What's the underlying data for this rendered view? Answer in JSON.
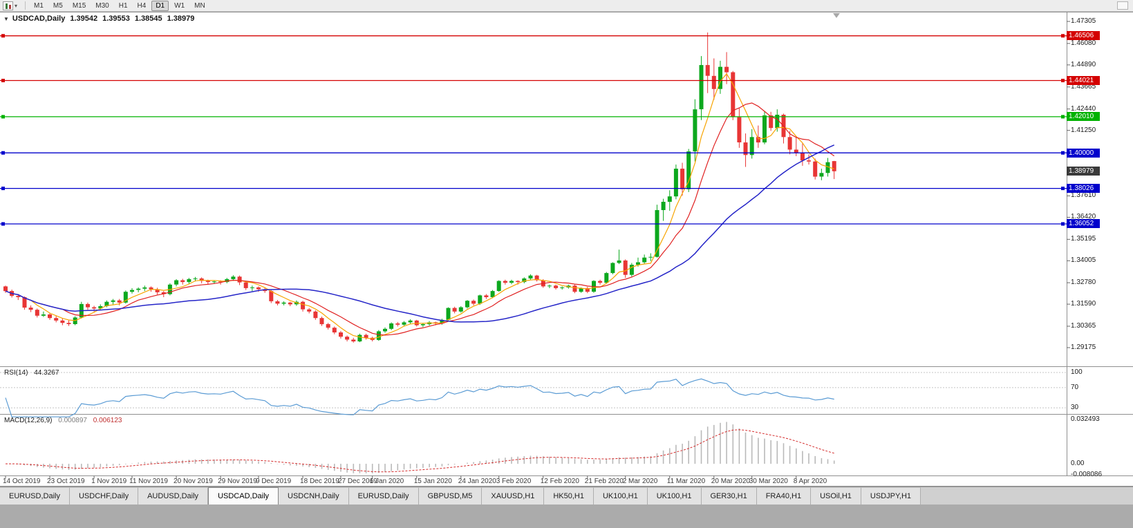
{
  "toolbar": {
    "dropdown_icon": "▾",
    "timeframes": [
      "M1",
      "M5",
      "M15",
      "M30",
      "H1",
      "H4",
      "D1",
      "W1",
      "MN"
    ],
    "active_timeframe": "D1"
  },
  "chart_header": {
    "collapse_icon": "▼",
    "symbol": "USDCAD,Daily",
    "open": "1.39542",
    "high": "1.39553",
    "low": "1.38545",
    "close": "1.38979"
  },
  "price_axis": {
    "labels": [
      "1.47305",
      "1.46080",
      "1.44890",
      "1.43665",
      "1.42440",
      "1.41250",
      "1.37610",
      "1.36420",
      "1.35195",
      "1.34005",
      "1.32780",
      "1.31590",
      "1.30365",
      "1.29175"
    ],
    "tags": [
      {
        "value": "1.46506",
        "price": 1.46506,
        "bg": "#d40000",
        "current": false
      },
      {
        "value": "1.44021",
        "price": 1.44021,
        "bg": "#d40000",
        "current": false
      },
      {
        "value": "1.42010",
        "price": 1.4201,
        "bg": "#00b200",
        "current": false
      },
      {
        "value": "1.40000",
        "price": 1.4,
        "bg": "#0000cc",
        "current": false
      },
      {
        "value": "1.38979",
        "price": 1.38979,
        "bg": "#3a3a3a",
        "current": true
      },
      {
        "value": "1.38026",
        "price": 1.38026,
        "bg": "#0000cc",
        "current": false
      },
      {
        "value": "1.36052",
        "price": 1.36052,
        "bg": "#0000cc",
        "current": false
      }
    ]
  },
  "hlines": [
    {
      "price": 1.46506,
      "color": "#d40000"
    },
    {
      "price": 1.44021,
      "color": "#d40000"
    },
    {
      "price": 1.4201,
      "color": "#00b200"
    },
    {
      "price": 1.4,
      "color": "#0000cc"
    },
    {
      "price": 1.38026,
      "color": "#0000cc"
    },
    {
      "price": 1.36052,
      "color": "#0000cc"
    }
  ],
  "indicators": {
    "rsi": {
      "name": "RSI(14)",
      "value": "44.3267",
      "levels": [
        "100",
        "70",
        "30"
      ],
      "level_values": [
        100,
        70,
        30
      ],
      "line_color": "#5a9bd4"
    },
    "macd": {
      "name": "MACD(12,26,9)",
      "main_value": "0.000897",
      "signal_value": "0.006123",
      "axis_max_label": "0.032493",
      "axis_zero_label": "0.00",
      "axis_min_label": "-0.008086",
      "scale_max": 0.032493,
      "scale_min": -0.008086,
      "histogram_color": "#b9b9b9",
      "signal_color": "#d42a2a"
    }
  },
  "tabs": {
    "items": [
      "EURUSD,Daily",
      "USDCHF,Daily",
      "AUDUSD,Daily",
      "USDCAD,Daily",
      "USDCNH,Daily",
      "EURUSD,Daily",
      "GBPUSD,M5",
      "XAUUSD,H1",
      "HK50,H1",
      "UK100,H1",
      "UK100,H1",
      "GER30,H1",
      "FRA40,H1",
      "USOil,H1",
      "USDJPY,H1"
    ],
    "active_index": 3
  },
  "chart_data": {
    "type": "candlestick",
    "symbol": "USDCAD",
    "timeframe": "Daily",
    "y_axis": {
      "top_price": 1.47305,
      "bottom_price": 1.29175
    },
    "colors": {
      "up": "#0ca81e",
      "down": "#e83535",
      "ma_fast": "#f7a400",
      "ma_mid": "#e02020",
      "ma_slow": "#2525c8"
    },
    "moving_average_periods": {
      "fast": 5,
      "mid": 10,
      "slow": 30
    },
    "x_axis_labels": [
      [
        "14 Oct 2019",
        0
      ],
      [
        "23 Oct 2019",
        7
      ],
      [
        "1 Nov 2019",
        14
      ],
      [
        "11 Nov 2019",
        20
      ],
      [
        "20 Nov 2019",
        27
      ],
      [
        "29 Nov 2019",
        34
      ],
      [
        "9 Dec 2019",
        40
      ],
      [
        "18 Dec 2019",
        47
      ],
      [
        "27 Dec 2019",
        53
      ],
      [
        "6 Jan 2020",
        58
      ],
      [
        "15 Jan 2020",
        65
      ],
      [
        "24 Jan 2020",
        72
      ],
      [
        "3 Feb 2020",
        78
      ],
      [
        "12 Feb 2020",
        85
      ],
      [
        "21 Feb 2020",
        92
      ],
      [
        "2 Mar 2020",
        98
      ],
      [
        "11 Mar 2020",
        105
      ],
      [
        "20 Mar 2020",
        112
      ],
      [
        "30 Mar 2020",
        118
      ],
      [
        "8 Apr 2020",
        125
      ]
    ],
    "ohlc": [
      [
        1.3258,
        1.3262,
        1.3222,
        1.3232
      ],
      [
        1.3232,
        1.324,
        1.3196,
        1.3205
      ],
      [
        1.3205,
        1.3215,
        1.3182,
        1.3198
      ],
      [
        1.3198,
        1.3202,
        1.3128,
        1.314
      ],
      [
        1.314,
        1.3152,
        1.3115,
        1.3128
      ],
      [
        1.3128,
        1.3135,
        1.3085,
        1.3095
      ],
      [
        1.3095,
        1.3118,
        1.3088,
        1.3102
      ],
      [
        1.3102,
        1.311,
        1.3072,
        1.3082
      ],
      [
        1.3082,
        1.3095,
        1.3058,
        1.3068
      ],
      [
        1.3068,
        1.308,
        1.3042,
        1.3055
      ],
      [
        1.3055,
        1.3068,
        1.3038,
        1.3048
      ],
      [
        1.3048,
        1.3092,
        1.3042,
        1.3085
      ],
      [
        1.3085,
        1.3172,
        1.308,
        1.316
      ],
      [
        1.316,
        1.3168,
        1.3128,
        1.3142
      ],
      [
        1.3142,
        1.315,
        1.3118,
        1.3135
      ],
      [
        1.3135,
        1.3158,
        1.3128,
        1.3148
      ],
      [
        1.3148,
        1.318,
        1.3142,
        1.3172
      ],
      [
        1.3172,
        1.3188,
        1.3158,
        1.318
      ],
      [
        1.318,
        1.3188,
        1.3152,
        1.3168
      ],
      [
        1.3168,
        1.3235,
        1.3162,
        1.3228
      ],
      [
        1.3228,
        1.3248,
        1.3218,
        1.3238
      ],
      [
        1.3238,
        1.3252,
        1.3225,
        1.3245
      ],
      [
        1.3245,
        1.3262,
        1.3232,
        1.3252
      ],
      [
        1.3252,
        1.3258,
        1.3228,
        1.3242
      ],
      [
        1.3242,
        1.325,
        1.3212,
        1.3225
      ],
      [
        1.3225,
        1.3232,
        1.3198,
        1.3215
      ],
      [
        1.3215,
        1.3275,
        1.3208,
        1.3268
      ],
      [
        1.3268,
        1.3298,
        1.3258,
        1.3292
      ],
      [
        1.3292,
        1.33,
        1.3268,
        1.3282
      ],
      [
        1.3282,
        1.3305,
        1.3272,
        1.3298
      ],
      [
        1.3298,
        1.331,
        1.3285,
        1.3302
      ],
      [
        1.3302,
        1.3308,
        1.3275,
        1.3288
      ],
      [
        1.3288,
        1.3295,
        1.3268,
        1.3282
      ],
      [
        1.3282,
        1.3292,
        1.3272,
        1.3285
      ],
      [
        1.3285,
        1.3292,
        1.3268,
        1.3282
      ],
      [
        1.3282,
        1.3305,
        1.3275,
        1.3298
      ],
      [
        1.3298,
        1.332,
        1.3288,
        1.3312
      ],
      [
        1.3312,
        1.3318,
        1.3265,
        1.328
      ],
      [
        1.328,
        1.3288,
        1.3238,
        1.3248
      ],
      [
        1.3248,
        1.3262,
        1.3232,
        1.3252
      ],
      [
        1.3252,
        1.3258,
        1.3228,
        1.3242
      ],
      [
        1.3242,
        1.325,
        1.3222,
        1.3232
      ],
      [
        1.3232,
        1.3238,
        1.3165,
        1.3175
      ],
      [
        1.3175,
        1.3182,
        1.3152,
        1.3162
      ],
      [
        1.3162,
        1.3175,
        1.3152,
        1.3168
      ],
      [
        1.3168,
        1.3172,
        1.3148,
        1.3158
      ],
      [
        1.3158,
        1.318,
        1.315,
        1.3172
      ],
      [
        1.3172,
        1.3178,
        1.3118,
        1.313
      ],
      [
        1.313,
        1.3138,
        1.3108,
        1.3118
      ],
      [
        1.3118,
        1.3125,
        1.3072,
        1.3082
      ],
      [
        1.3082,
        1.309,
        1.3038,
        1.3048
      ],
      [
        1.3048,
        1.3055,
        1.3018,
        1.3028
      ],
      [
        1.3028,
        1.3035,
        1.2992,
        1.3002
      ],
      [
        1.3002,
        1.301,
        1.2968,
        1.2978
      ],
      [
        1.2978,
        1.2985,
        1.2952,
        1.2962
      ],
      [
        1.2962,
        1.2972,
        1.2945,
        1.2952
      ],
      [
        1.2952,
        1.2995,
        1.2948,
        1.2988
      ],
      [
        1.2988,
        1.2995,
        1.2962,
        1.2972
      ],
      [
        1.2972,
        1.2978,
        1.2952,
        1.296
      ],
      [
        1.296,
        1.3015,
        1.2955,
        1.3008
      ],
      [
        1.3008,
        1.303,
        1.3,
        1.3022
      ],
      [
        1.3022,
        1.3058,
        1.3015,
        1.3052
      ],
      [
        1.3052,
        1.306,
        1.3035,
        1.3045
      ],
      [
        1.3045,
        1.3065,
        1.3038,
        1.3058
      ],
      [
        1.3058,
        1.3075,
        1.3048,
        1.3068
      ],
      [
        1.3068,
        1.3072,
        1.3035,
        1.3042
      ],
      [
        1.3042,
        1.3055,
        1.3032,
        1.3048
      ],
      [
        1.3048,
        1.3065,
        1.304,
        1.3058
      ],
      [
        1.3058,
        1.3062,
        1.3042,
        1.3052
      ],
      [
        1.3052,
        1.3078,
        1.3045,
        1.3072
      ],
      [
        1.3072,
        1.3142,
        1.3068,
        1.3138
      ],
      [
        1.3138,
        1.3145,
        1.3108,
        1.3118
      ],
      [
        1.3118,
        1.3148,
        1.3112,
        1.3142
      ],
      [
        1.3142,
        1.3182,
        1.3135,
        1.3178
      ],
      [
        1.3178,
        1.3185,
        1.3152,
        1.3162
      ],
      [
        1.3162,
        1.3212,
        1.3155,
        1.3208
      ],
      [
        1.3208,
        1.3215,
        1.3188,
        1.3198
      ],
      [
        1.3198,
        1.3238,
        1.3192,
        1.3232
      ],
      [
        1.3232,
        1.3292,
        1.3228,
        1.3288
      ],
      [
        1.3288,
        1.3295,
        1.3268,
        1.3278
      ],
      [
        1.3278,
        1.3295,
        1.327,
        1.3288
      ],
      [
        1.3288,
        1.3292,
        1.3268,
        1.3282
      ],
      [
        1.3282,
        1.3308,
        1.3275,
        1.3302
      ],
      [
        1.3302,
        1.3325,
        1.3295,
        1.3318
      ],
      [
        1.3318,
        1.3322,
        1.3285,
        1.3292
      ],
      [
        1.3292,
        1.3298,
        1.325,
        1.3258
      ],
      [
        1.3258,
        1.3268,
        1.3248,
        1.3262
      ],
      [
        1.3262,
        1.3268,
        1.324,
        1.3248
      ],
      [
        1.3248,
        1.3258,
        1.324,
        1.3252
      ],
      [
        1.3252,
        1.3268,
        1.3245,
        1.3262
      ],
      [
        1.3262,
        1.3268,
        1.322,
        1.3228
      ],
      [
        1.3228,
        1.3252,
        1.3222,
        1.3248
      ],
      [
        1.3248,
        1.3255,
        1.322,
        1.3228
      ],
      [
        1.3228,
        1.3292,
        1.3222,
        1.3288
      ],
      [
        1.3288,
        1.3295,
        1.3268,
        1.3278
      ],
      [
        1.3278,
        1.3338,
        1.3272,
        1.3332
      ],
      [
        1.3332,
        1.3392,
        1.3325,
        1.3388
      ],
      [
        1.3388,
        1.3462,
        1.3382,
        1.3402
      ],
      [
        1.3402,
        1.3408,
        1.3305,
        1.3322
      ],
      [
        1.3322,
        1.3388,
        1.3312,
        1.3378
      ],
      [
        1.3378,
        1.3418,
        1.3368,
        1.3392
      ],
      [
        1.3392,
        1.3435,
        1.3382,
        1.3418
      ],
      [
        1.3418,
        1.3442,
        1.3398,
        1.3422
      ],
      [
        1.3422,
        1.3712,
        1.3418,
        1.3682
      ],
      [
        1.3682,
        1.3745,
        1.3622,
        1.3728
      ],
      [
        1.3728,
        1.3792,
        1.3678,
        1.3758
      ],
      [
        1.3758,
        1.3935,
        1.3742,
        1.3912
      ],
      [
        1.3912,
        1.3945,
        1.3762,
        1.3798
      ],
      [
        1.3798,
        1.4022,
        1.3782,
        1.4008
      ],
      [
        1.4008,
        1.4298,
        1.3952,
        1.4242
      ],
      [
        1.4242,
        1.4538,
        1.4182,
        1.4488
      ],
      [
        1.4488,
        1.4669,
        1.4332,
        1.4428
      ],
      [
        1.4428,
        1.4525,
        1.4295,
        1.4355
      ],
      [
        1.4355,
        1.4512,
        1.4328,
        1.4478
      ],
      [
        1.4478,
        1.456,
        1.4382,
        1.4448
      ],
      [
        1.4448,
        1.4455,
        1.4182,
        1.4198
      ],
      [
        1.4198,
        1.4248,
        1.4028,
        1.4058
      ],
      [
        1.4058,
        1.4108,
        1.3922,
        1.3988
      ],
      [
        1.3988,
        1.4132,
        1.3968,
        1.4088
      ],
      [
        1.4088,
        1.4152,
        1.4028,
        1.4058
      ],
      [
        1.4058,
        1.4232,
        1.4048,
        1.4208
      ],
      [
        1.4208,
        1.4228,
        1.4122,
        1.4138
      ],
      [
        1.4138,
        1.4242,
        1.4118,
        1.4212
      ],
      [
        1.4212,
        1.4218,
        1.4052,
        1.4088
      ],
      [
        1.4088,
        1.4122,
        1.3992,
        1.4018
      ],
      [
        1.4018,
        1.4088,
        1.3982,
        1.4002
      ],
      [
        1.4002,
        1.4052,
        1.3928,
        1.3958
      ],
      [
        1.3958,
        1.3992,
        1.3935,
        1.3952
      ],
      [
        1.3952,
        1.3968,
        1.3852,
        1.3868
      ],
      [
        1.3868,
        1.3912,
        1.3848,
        1.3888
      ],
      [
        1.3888,
        1.3972,
        1.3868,
        1.3948
      ],
      [
        1.39542,
        1.39553,
        1.38545,
        1.38979
      ]
    ]
  }
}
